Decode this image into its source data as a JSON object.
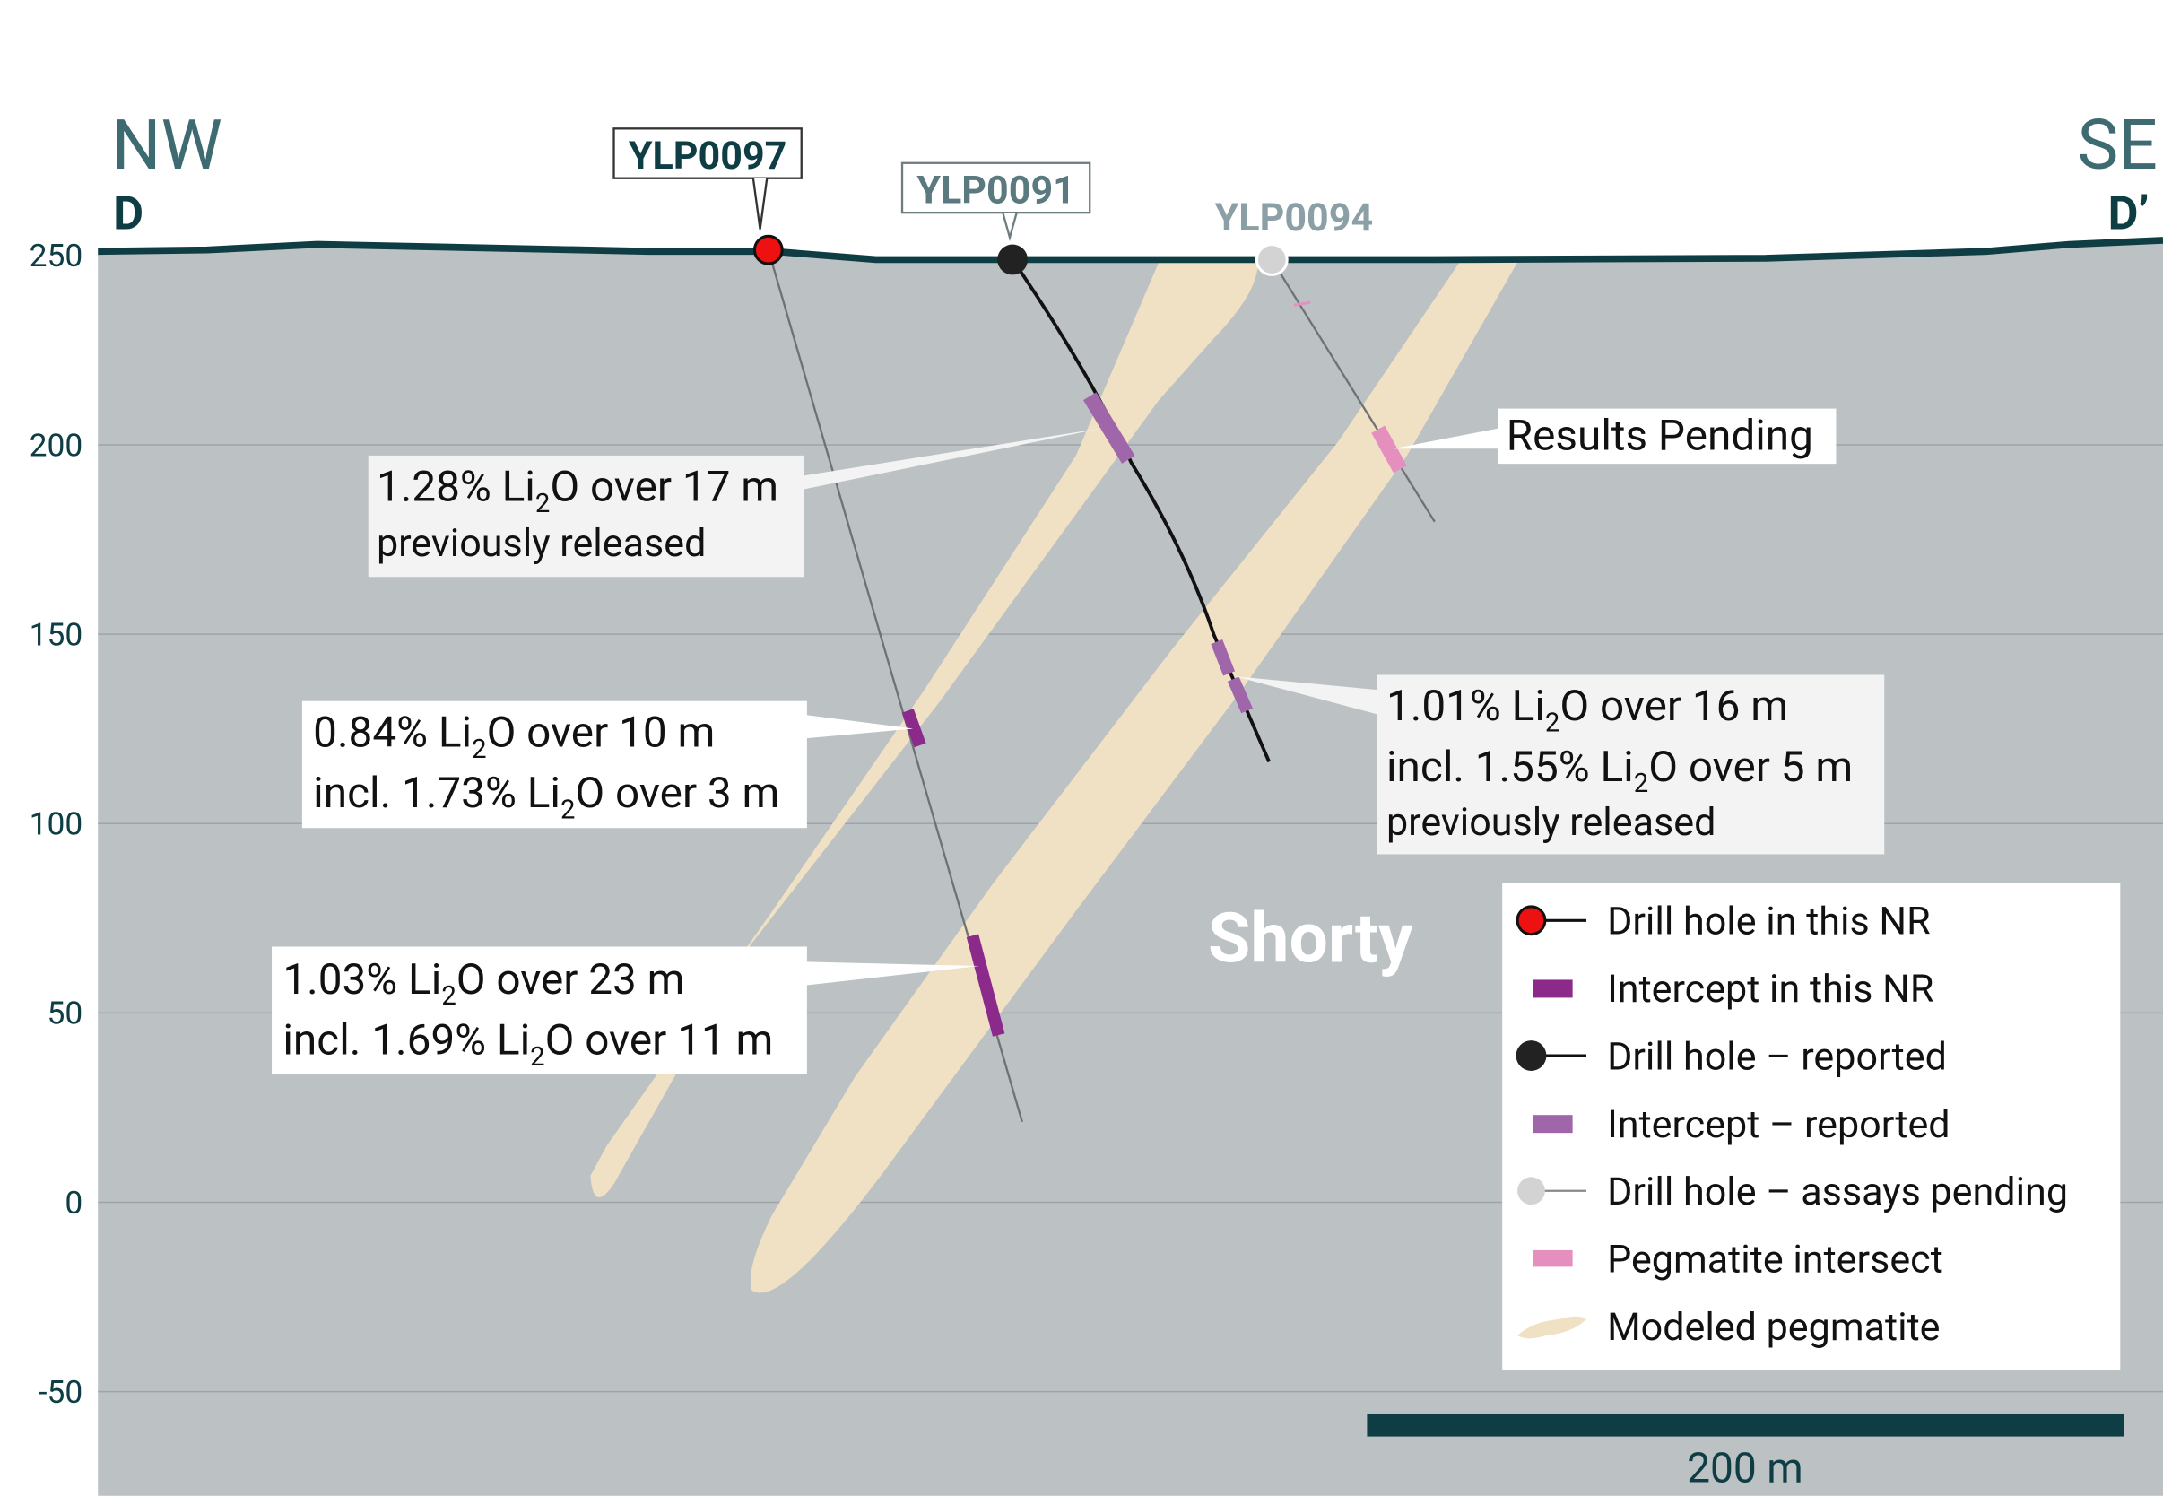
{
  "section": {
    "left": {
      "direction": "NW",
      "label": "D"
    },
    "right": {
      "direction": "SE",
      "label": "D’"
    }
  },
  "elevation_axis": {
    "ticks": [
      250,
      200,
      150,
      100,
      50,
      0,
      -50
    ]
  },
  "drill_holes": [
    {
      "label": "YLP0097"
    },
    {
      "label": "YLP0091"
    },
    {
      "label": "YLP0094"
    }
  ],
  "callouts": [
    {
      "lines": [
        [
          "1.28% Li",
          "2",
          "O over 17 m"
        ],
        [
          "previously released"
        ]
      ]
    },
    {
      "lines": [
        [
          "0.84% Li",
          "2",
          "O over 10 m"
        ],
        [
          "incl. 1.73% Li",
          "2",
          "O over 3 m"
        ]
      ]
    },
    {
      "lines": [
        [
          "1.03% Li",
          "2",
          "O over 23 m"
        ],
        [
          "incl. 1.69% Li",
          "2",
          "O over 11 m"
        ]
      ]
    },
    {
      "lines": [
        [
          "1.01% Li",
          "2",
          "O over 16 m"
        ],
        [
          "incl. 1.55% Li",
          "2",
          "O over 5 m"
        ],
        [
          "previously released"
        ]
      ]
    }
  ],
  "results_pending": "Results Pending",
  "zone_label": "Shorty",
  "legend": [
    "Drill hole in this NR",
    "Intercept in this NR",
    "Drill hole – reported",
    "Intercept – reported",
    "Drill hole – assays pending",
    "Pegmatite intersect",
    "Modeled pegmatite"
  ],
  "scale_bar": "200 m"
}
